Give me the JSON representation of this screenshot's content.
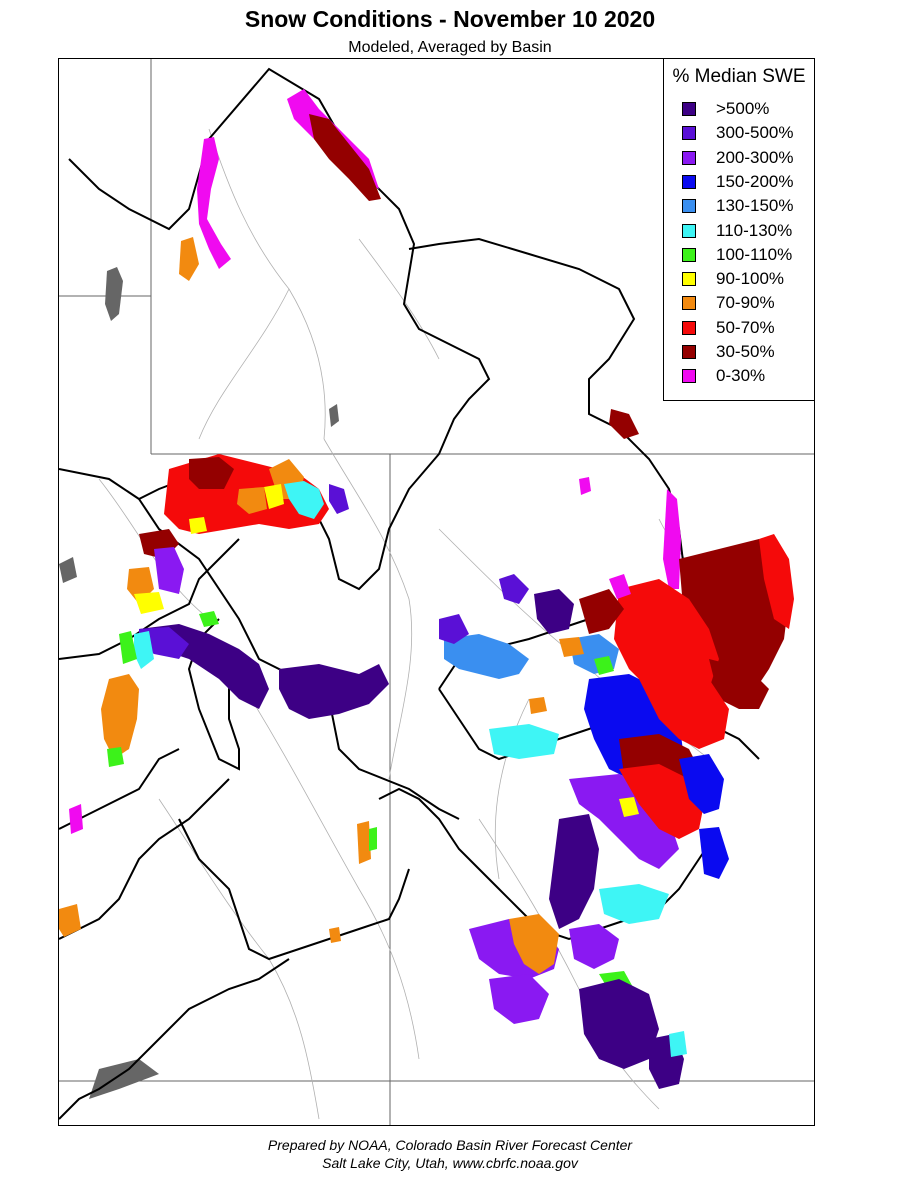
{
  "title": "Snow Conditions - November 10 2020",
  "subtitle": "Modeled, Averaged by Basin",
  "legend": {
    "title": "% Median SWE",
    "items": [
      {
        "label": ">500%",
        "color": "#3d0085"
      },
      {
        "label": "300-500%",
        "color": "#5a10d6"
      },
      {
        "label": "200-300%",
        "color": "#8a19f2"
      },
      {
        "label": "150-200%",
        "color": "#0a0af0"
      },
      {
        "label": "130-150%",
        "color": "#3a8ff0"
      },
      {
        "label": "110-130%",
        "color": "#3ef5f5"
      },
      {
        "label": "100-110%",
        "color": "#3cf21a"
      },
      {
        "label": "90-100%",
        "color": "#ffff00"
      },
      {
        "label": "70-90%",
        "color": "#f28a10"
      },
      {
        "label": "50-70%",
        "color": "#f50a0a"
      },
      {
        "label": "30-50%",
        "color": "#940000"
      },
      {
        "label": "0-30%",
        "color": "#f00af0"
      }
    ]
  },
  "footer": {
    "line1": "Prepared by NOAA, Colorado Basin River Forecast Center",
    "line2": "Salt Lake City, Utah, www.cbrfc.noaa.gov"
  }
}
